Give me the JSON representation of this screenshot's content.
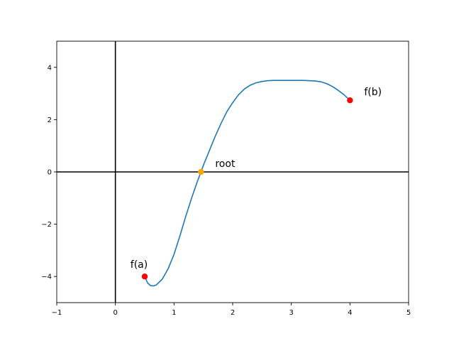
{
  "chart_data": {
    "type": "line",
    "title": "",
    "xlabel": "",
    "ylabel": "",
    "xlim": [
      -1,
      5
    ],
    "ylim": [
      -5,
      5
    ],
    "grid": false,
    "x_ticks": [
      -1,
      0,
      1,
      2,
      3,
      4,
      5
    ],
    "y_ticks": [
      -4,
      -2,
      0,
      2,
      4
    ],
    "x_tick_labels": [
      "−1",
      "0",
      "1",
      "2",
      "3",
      "4",
      "5"
    ],
    "y_tick_labels": [
      "−4",
      "−2",
      "0",
      "2",
      "4"
    ],
    "reference_lines": [
      {
        "orientation": "horizontal",
        "value": 0,
        "color": "#000000"
      },
      {
        "orientation": "vertical",
        "value": 0,
        "color": "#000000"
      }
    ],
    "series": [
      {
        "color": "#1f77b4",
        "x": [
          0.5,
          0.55,
          0.6,
          0.65,
          0.7,
          0.8,
          0.9,
          1.0,
          1.1,
          1.2,
          1.3,
          1.4,
          1.46,
          1.5,
          1.6,
          1.7,
          1.8,
          1.9,
          2.0,
          2.1,
          2.2,
          2.3,
          2.4,
          2.5,
          2.6,
          2.7,
          2.8,
          2.9,
          3.0,
          3.1,
          3.2,
          3.3,
          3.4,
          3.5,
          3.6,
          3.7,
          3.8,
          3.9,
          4.0
        ],
        "y": [
          -4.0,
          -4.25,
          -4.35,
          -4.36,
          -4.32,
          -4.1,
          -3.7,
          -3.15,
          -2.45,
          -1.7,
          -1.0,
          -0.35,
          0.0,
          0.25,
          0.8,
          1.35,
          1.85,
          2.3,
          2.65,
          2.95,
          3.17,
          3.32,
          3.41,
          3.46,
          3.49,
          3.5,
          3.5,
          3.5,
          3.5,
          3.5,
          3.5,
          3.49,
          3.48,
          3.45,
          3.38,
          3.27,
          3.12,
          2.95,
          2.74
        ]
      }
    ],
    "points": [
      {
        "x": 0.5,
        "y": -4.0,
        "color": "#ff0000",
        "label": "f(a)",
        "label_anchor": "above"
      },
      {
        "x": 1.46,
        "y": 0.0,
        "color": "#ffa500",
        "label": "root",
        "label_anchor": "upper-right"
      },
      {
        "x": 4.0,
        "y": 2.74,
        "color": "#ff0000",
        "label": "f(b)",
        "label_anchor": "upper-right"
      }
    ]
  }
}
